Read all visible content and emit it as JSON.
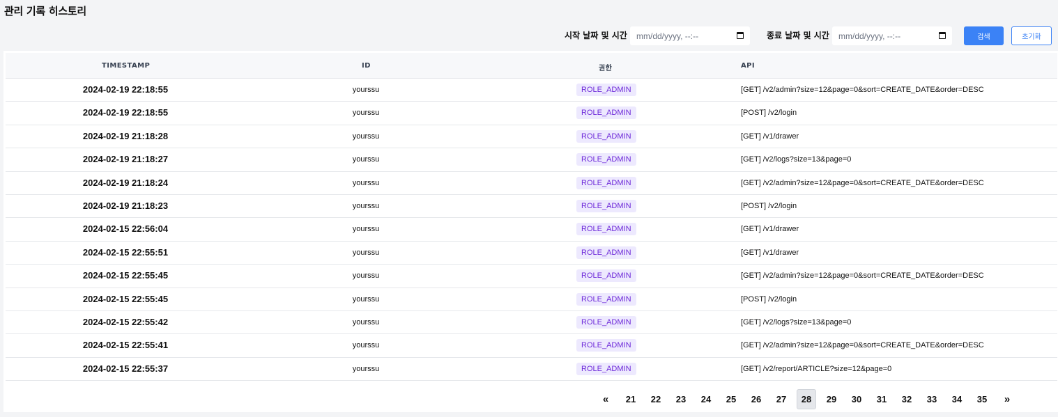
{
  "page": {
    "title": "관리 기록 히스토리"
  },
  "filters": {
    "start_label": "시작 날짜 및 시간",
    "start_placeholder": "mm/dd/yyyy, --:--",
    "end_label": "종료 날짜 및 시간",
    "end_placeholder": "mm/dd/yyyy, --:--",
    "search_label": "검색",
    "reset_label": "초기화"
  },
  "table": {
    "columns": [
      "TIMESTAMP",
      "ID",
      "권한",
      "API"
    ],
    "rows": [
      {
        "timestamp": "2024-02-19 22:18:55",
        "id": "yourssu",
        "role": "ROLE_ADMIN",
        "api": "[GET] /v2/admin?size=12&page=0&sort=CREATE_DATE&order=DESC"
      },
      {
        "timestamp": "2024-02-19 22:18:55",
        "id": "yourssu",
        "role": "ROLE_ADMIN",
        "api": "[POST] /v2/login"
      },
      {
        "timestamp": "2024-02-19 21:18:28",
        "id": "yourssu",
        "role": "ROLE_ADMIN",
        "api": "[GET] /v1/drawer"
      },
      {
        "timestamp": "2024-02-19 21:18:27",
        "id": "yourssu",
        "role": "ROLE_ADMIN",
        "api": "[GET] /v2/logs?size=13&page=0"
      },
      {
        "timestamp": "2024-02-19 21:18:24",
        "id": "yourssu",
        "role": "ROLE_ADMIN",
        "api": "[GET] /v2/admin?size=12&page=0&sort=CREATE_DATE&order=DESC"
      },
      {
        "timestamp": "2024-02-19 21:18:23",
        "id": "yourssu",
        "role": "ROLE_ADMIN",
        "api": "[POST] /v2/login"
      },
      {
        "timestamp": "2024-02-15 22:56:04",
        "id": "yourssu",
        "role": "ROLE_ADMIN",
        "api": "[GET] /v1/drawer"
      },
      {
        "timestamp": "2024-02-15 22:55:51",
        "id": "yourssu",
        "role": "ROLE_ADMIN",
        "api": "[GET] /v1/drawer"
      },
      {
        "timestamp": "2024-02-15 22:55:45",
        "id": "yourssu",
        "role": "ROLE_ADMIN",
        "api": "[GET] /v2/admin?size=12&page=0&sort=CREATE_DATE&order=DESC"
      },
      {
        "timestamp": "2024-02-15 22:55:45",
        "id": "yourssu",
        "role": "ROLE_ADMIN",
        "api": "[POST] /v2/login"
      },
      {
        "timestamp": "2024-02-15 22:55:42",
        "id": "yourssu",
        "role": "ROLE_ADMIN",
        "api": "[GET] /v2/logs?size=13&page=0"
      },
      {
        "timestamp": "2024-02-15 22:55:41",
        "id": "yourssu",
        "role": "ROLE_ADMIN",
        "api": "[GET] /v2/admin?size=12&page=0&sort=CREATE_DATE&order=DESC"
      },
      {
        "timestamp": "2024-02-15 22:55:37",
        "id": "yourssu",
        "role": "ROLE_ADMIN",
        "api": "[GET] /v2/report/ARTICLE?size=12&page=0"
      }
    ]
  },
  "pagination": {
    "prev_label": "«",
    "next_label": "»",
    "pages": [
      "21",
      "22",
      "23",
      "24",
      "25",
      "26",
      "27",
      "28",
      "29",
      "30",
      "31",
      "32",
      "33",
      "34",
      "35"
    ],
    "current": "28"
  },
  "colors": {
    "primary": "#3b82f6",
    "role_badge_bg": "#ede9fe",
    "role_badge_text": "#6d28d9"
  }
}
